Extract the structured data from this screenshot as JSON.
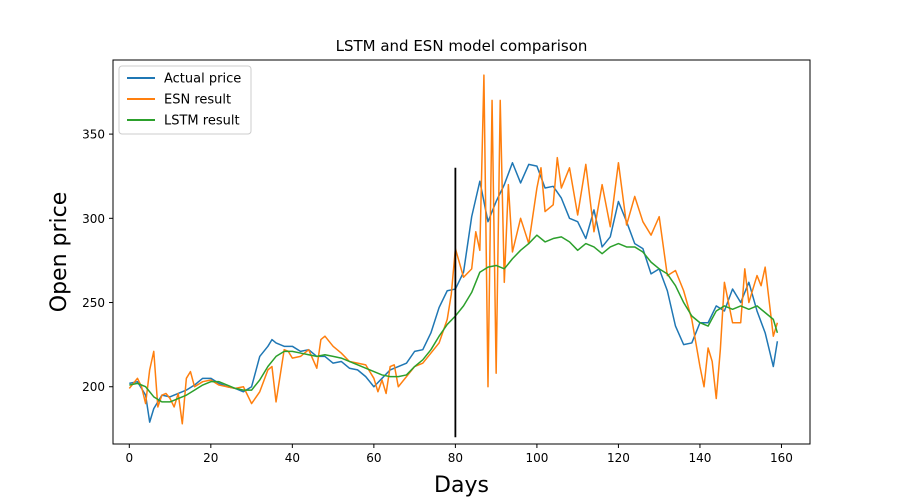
{
  "chart_data": {
    "type": "line",
    "title": "LSTM and ESN model comparison",
    "xlabel": "Days",
    "ylabel": "Open price",
    "xlim": [
      -4,
      167
    ],
    "ylim": [
      166,
      394
    ],
    "xticks": [
      0,
      20,
      40,
      60,
      80,
      100,
      120,
      140,
      160
    ],
    "yticks": [
      200,
      250,
      300,
      350
    ],
    "grid": false,
    "legend_position": "upper-left",
    "vline": {
      "x": 80,
      "y_min": 170,
      "y_max": 330,
      "color": "#000000"
    },
    "series": [
      {
        "name": "Actual price",
        "color": "#1f77b4",
        "x": [
          0,
          2,
          4,
          5,
          6,
          8,
          10,
          12,
          14,
          16,
          18,
          20,
          22,
          24,
          26,
          28,
          30,
          32,
          34,
          35,
          36,
          38,
          40,
          42,
          44,
          46,
          48,
          50,
          52,
          54,
          56,
          58,
          60,
          62,
          64,
          66,
          68,
          70,
          72,
          74,
          76,
          78,
          80,
          82,
          84,
          86,
          88,
          90,
          92,
          94,
          96,
          98,
          100,
          102,
          104,
          106,
          108,
          110,
          112,
          114,
          116,
          118,
          120,
          122,
          124,
          126,
          128,
          130,
          132,
          134,
          136,
          138,
          140,
          142,
          144,
          146,
          148,
          150,
          152,
          154,
          156,
          158,
          159
        ],
        "y": [
          202,
          203,
          195,
          179,
          187,
          195,
          194,
          196,
          198,
          201,
          205,
          205,
          202,
          200,
          199,
          197,
          200,
          218,
          224,
          228,
          226,
          224,
          224,
          221,
          222,
          218,
          218,
          214,
          215,
          211,
          210,
          206,
          200,
          205,
          210,
          212,
          214,
          221,
          222,
          232,
          247,
          257,
          258,
          268,
          301,
          322,
          298,
          310,
          320,
          333,
          321,
          332,
          331,
          318,
          319,
          312,
          300,
          298,
          288,
          305,
          283,
          289,
          310,
          298,
          285,
          282,
          267,
          270,
          257,
          236,
          225,
          226,
          238,
          238,
          248,
          245,
          258,
          250,
          262,
          245,
          232,
          212,
          227
        ]
      },
      {
        "name": "ESN result",
        "color": "#ff7f0e",
        "x": [
          0,
          2,
          3,
          4,
          5,
          6,
          7,
          8,
          9,
          10,
          11,
          12,
          13,
          14,
          15,
          16,
          18,
          20,
          22,
          24,
          26,
          28,
          30,
          32,
          34,
          35,
          36,
          38,
          39,
          40,
          42,
          44,
          46,
          47,
          48,
          50,
          52,
          54,
          56,
          58,
          60,
          61,
          62,
          63,
          64,
          65,
          66,
          68,
          70,
          72,
          74,
          76,
          78,
          79,
          80,
          82,
          84,
          85,
          86,
          87,
          88,
          89,
          90,
          91,
          92,
          93,
          94,
          96,
          98,
          100,
          101,
          102,
          104,
          105,
          106,
          108,
          110,
          112,
          114,
          116,
          118,
          120,
          122,
          124,
          126,
          128,
          130,
          132,
          134,
          136,
          138,
          140,
          141,
          142,
          143,
          144,
          145,
          146,
          148,
          150,
          151,
          152,
          154,
          155,
          156,
          158,
          159
        ],
        "y": [
          199,
          205,
          200,
          190,
          210,
          221,
          188,
          195,
          196,
          193,
          188,
          196,
          178,
          205,
          209,
          200,
          203,
          204,
          201,
          200,
          199,
          200,
          190,
          197,
          210,
          212,
          191,
          222,
          221,
          217,
          218,
          222,
          211,
          228,
          230,
          224,
          220,
          215,
          214,
          213,
          205,
          197,
          204,
          196,
          212,
          213,
          200,
          206,
          212,
          214,
          220,
          226,
          240,
          255,
          282,
          265,
          270,
          292,
          281,
          385,
          200,
          370,
          208,
          370,
          262,
          320,
          280,
          300,
          285,
          318,
          330,
          304,
          308,
          336,
          318,
          330,
          302,
          332,
          292,
          320,
          295,
          333,
          296,
          313,
          298,
          290,
          301,
          266,
          269,
          257,
          240,
          212,
          200,
          223,
          215,
          193,
          222,
          262,
          238,
          238,
          270,
          250,
          266,
          260,
          271,
          230,
          238
        ]
      },
      {
        "name": "LSTM result",
        "color": "#2ca02c",
        "x": [
          0,
          2,
          4,
          6,
          8,
          10,
          12,
          14,
          16,
          18,
          20,
          22,
          24,
          26,
          28,
          30,
          32,
          34,
          36,
          38,
          40,
          42,
          44,
          46,
          48,
          50,
          52,
          54,
          56,
          58,
          60,
          62,
          64,
          66,
          68,
          70,
          72,
          74,
          76,
          78,
          80,
          82,
          84,
          86,
          88,
          90,
          92,
          94,
          96,
          98,
          100,
          102,
          104,
          106,
          108,
          110,
          112,
          114,
          116,
          118,
          120,
          122,
          124,
          126,
          128,
          130,
          132,
          134,
          136,
          138,
          140,
          142,
          144,
          146,
          148,
          150,
          152,
          154,
          156,
          158,
          159
        ],
        "y": [
          201,
          202,
          200,
          194,
          191,
          191,
          193,
          195,
          198,
          201,
          203,
          203,
          201,
          199,
          198,
          198,
          204,
          212,
          218,
          221,
          221,
          220,
          219,
          218,
          219,
          218,
          217,
          215,
          213,
          211,
          209,
          207,
          206,
          206,
          207,
          212,
          216,
          222,
          230,
          237,
          242,
          248,
          256,
          268,
          271,
          272,
          270,
          276,
          281,
          285,
          290,
          286,
          288,
          289,
          286,
          281,
          285,
          283,
          279,
          283,
          285,
          283,
          283,
          280,
          274,
          270,
          267,
          260,
          250,
          242,
          238,
          236,
          245,
          248,
          246,
          248,
          246,
          248,
          244,
          240,
          232
        ]
      }
    ]
  }
}
